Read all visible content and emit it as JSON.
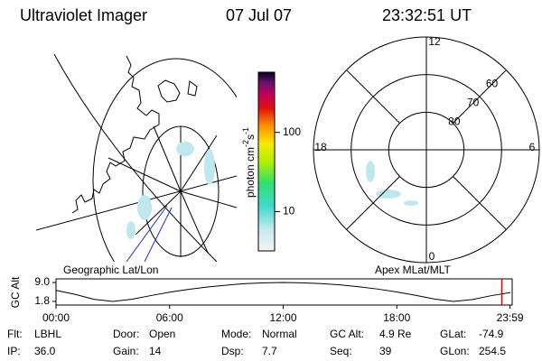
{
  "header": {
    "title": "Ultraviolet Imager",
    "date": "07 Jul 07",
    "time": "23:32:51 UT"
  },
  "colorbar": {
    "label": "photon cm",
    "label_exp1": "-2",
    "label_unit2": "s",
    "label_exp2": "-1",
    "lim": [
      3.2,
      575
    ],
    "log": true,
    "ticks": [
      10,
      100
    ]
  },
  "polar": {
    "center_lat": 90,
    "edge_lat": 60,
    "rings": [
      80,
      70,
      60
    ],
    "hour_labels": [
      "12",
      "18",
      "6",
      "0"
    ]
  },
  "panel_labels": {
    "left": "Geographic Lat/Lon",
    "right": "Apex MLat/MLT"
  },
  "altitude_plot": {
    "ylabel": "GC Alt",
    "xlim": [
      0,
      24
    ],
    "ylim": [
      0.4,
      10.4
    ],
    "yticks": [
      {
        "value": 9,
        "label": "9.0"
      },
      {
        "value": 1.8,
        "label": "1.8"
      }
    ],
    "xticks": [
      {
        "value": 0,
        "label": "00:00"
      },
      {
        "value": 6,
        "label": "06:00"
      },
      {
        "value": 12,
        "label": "12:00"
      },
      {
        "value": 18,
        "label": "18:00"
      },
      {
        "value": 23.98,
        "label": "23:59"
      }
    ],
    "x": [
      0,
      1,
      2,
      3,
      4,
      5,
      6,
      7,
      8,
      9,
      10,
      11,
      12,
      13,
      14,
      15,
      16,
      17,
      18,
      19,
      20,
      21,
      22,
      23,
      24
    ],
    "values": [
      6.0,
      4.5,
      2.6,
      1.8,
      2.6,
      4.0,
      5.3,
      6.4,
      7.3,
      8.0,
      8.6,
      8.9,
      9.0,
      8.9,
      8.6,
      8.1,
      7.4,
      6.5,
      5.4,
      4.1,
      2.7,
      1.8,
      2.5,
      4.0,
      5.2
    ],
    "marker_x": 23.55
  },
  "footer": {
    "rows": [
      [
        [
          "Flt:",
          "LBHL"
        ],
        [
          "Door:",
          "Open"
        ],
        [
          "Mode:",
          "Normal"
        ],
        [
          "GC Alt:",
          "4.9 Re"
        ],
        [
          "GLat:",
          "-74.9"
        ]
      ],
      [
        [
          "IP:",
          "36.0"
        ],
        [
          "Gain:",
          "14"
        ],
        [
          "Dsp:",
          "7.7"
        ],
        [
          "Seq:",
          "39"
        ],
        [
          "GLon:",
          "254.5"
        ]
      ]
    ]
  }
}
